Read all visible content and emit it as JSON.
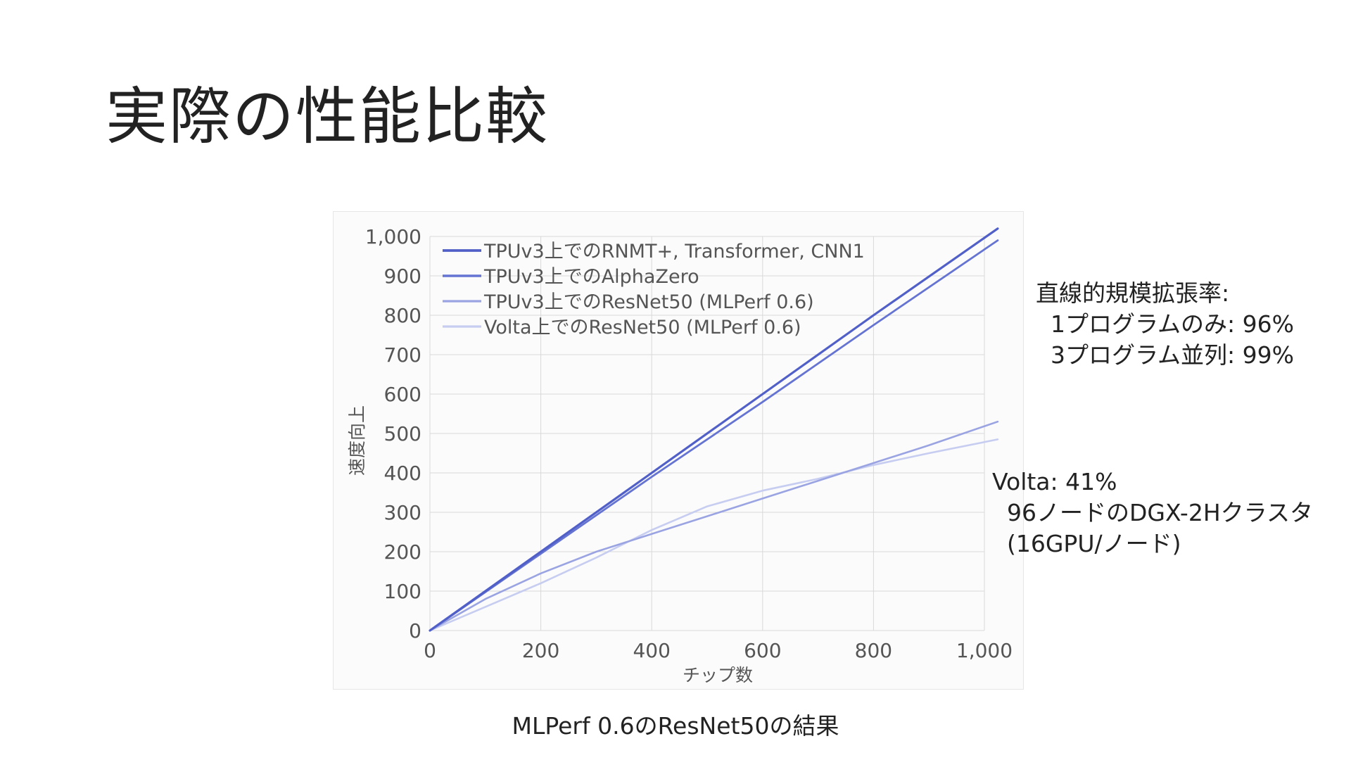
{
  "slide": {
    "title": "実際の性能比較",
    "note_tpu": "直線的規模拡張率:\n  1プログラムのみ: 96%\n  3プログラム並列: 99%",
    "note_volta": "Volta: 41%\n  96ノードのDGX-2Hクラスタ\n  (16GPU/ノード)",
    "caption": "MLPerf 0.6のResNet50の結果"
  },
  "colors": {
    "line_rnmt": "#5160c8",
    "line_alphazero": "#6574d2",
    "line_resnet_tpu": "#9aa4e2",
    "line_resnet_volta": "#c6cdf0",
    "grid": "#d9d9d9",
    "axis_text": "#555555"
  },
  "chart_data": {
    "type": "line",
    "title": "",
    "xlabel": "チップ数",
    "ylabel": "速度向上",
    "xlim": [
      0,
      1000
    ],
    "ylim": [
      0,
      1000
    ],
    "x_ticks": [
      0,
      200,
      400,
      600,
      800,
      1000
    ],
    "x_tick_labels": [
      "0",
      "200",
      "400",
      "600",
      "800",
      "1,000"
    ],
    "y_ticks": [
      0,
      100,
      200,
      300,
      400,
      500,
      600,
      700,
      800,
      900,
      1000
    ],
    "y_tick_labels": [
      "0",
      "100",
      "200",
      "300",
      "400",
      "500",
      "600",
      "700",
      "800",
      "900",
      "1,000"
    ],
    "grid": true,
    "legend_position": "top-left",
    "series": [
      {
        "name": "TPUv3上でのRNMT+, Transformer, CNN1",
        "color_key": "line_rnmt",
        "points": [
          [
            0,
            0
          ],
          [
            200,
            200
          ],
          [
            400,
            400
          ],
          [
            600,
            600
          ],
          [
            800,
            800
          ],
          [
            1024,
            1020
          ]
        ]
      },
      {
        "name": "TPUv3上でのAlphaZero",
        "color_key": "line_alphazero",
        "points": [
          [
            0,
            0
          ],
          [
            200,
            195
          ],
          [
            400,
            390
          ],
          [
            600,
            580
          ],
          [
            800,
            775
          ],
          [
            1024,
            990
          ]
        ]
      },
      {
        "name": "TPUv3上でのResNet50 (MLPerf 0.6)",
        "color_key": "line_resnet_tpu",
        "points": [
          [
            0,
            0
          ],
          [
            100,
            80
          ],
          [
            200,
            145
          ],
          [
            300,
            200
          ],
          [
            400,
            245
          ],
          [
            500,
            290
          ],
          [
            600,
            335
          ],
          [
            700,
            380
          ],
          [
            800,
            425
          ],
          [
            900,
            470
          ],
          [
            1024,
            530
          ]
        ]
      },
      {
        "name": "Volta上でのResNet50 (MLPerf 0.6)",
        "color_key": "line_resnet_volta",
        "points": [
          [
            0,
            0
          ],
          [
            100,
            60
          ],
          [
            200,
            120
          ],
          [
            300,
            185
          ],
          [
            400,
            255
          ],
          [
            500,
            315
          ],
          [
            600,
            355
          ],
          [
            700,
            385
          ],
          [
            800,
            420
          ],
          [
            900,
            450
          ],
          [
            1024,
            485
          ]
        ]
      }
    ]
  }
}
